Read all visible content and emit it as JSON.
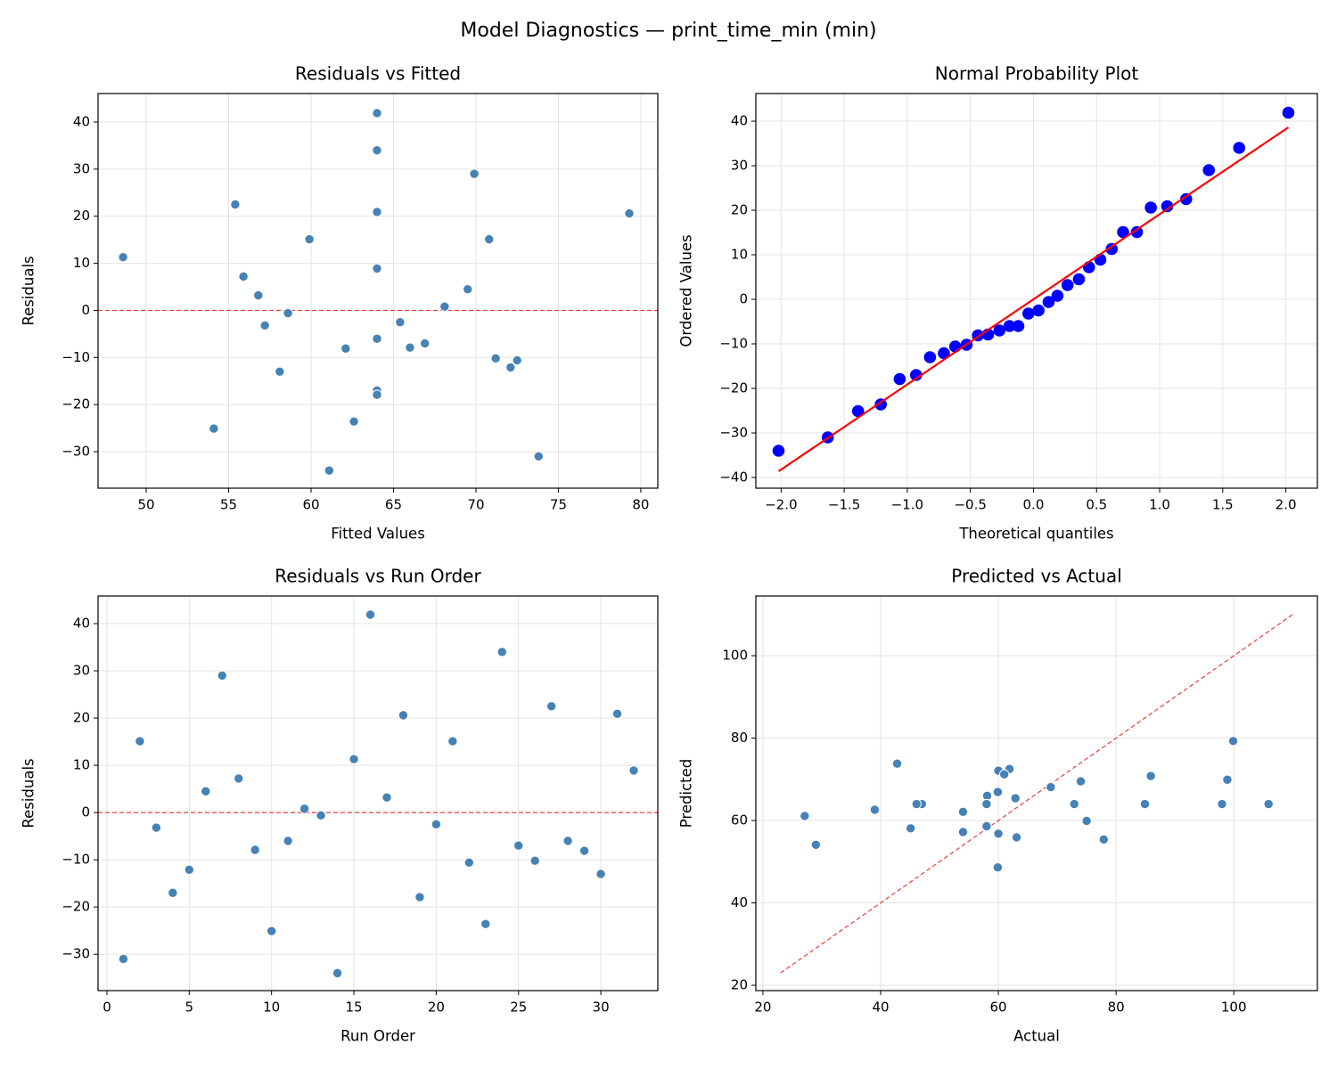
{
  "title": "Model Diagnostics — print_time_min (min)",
  "chart_data": [
    {
      "type": "scatter",
      "title": "Residuals vs Fitted",
      "x_label": "Fitted Values",
      "y_label": "Residuals",
      "color": "#4682b4",
      "grid": true,
      "x": [
        73.8,
        59.9,
        57.2,
        64,
        72.1,
        69.5,
        69.9,
        55.9,
        66,
        54.1,
        64,
        68.1,
        58.6,
        61.1,
        48.6,
        64,
        56.8,
        79.3,
        64,
        65.4,
        70.8,
        72.5,
        62.6,
        64,
        66.9,
        71.2,
        55.4,
        64,
        62.1,
        58.1,
        64,
        64
      ],
      "values": [
        -31,
        15.1,
        -3.2,
        -17,
        -12.1,
        4.5,
        29,
        7.2,
        -7.9,
        -25.1,
        -6,
        0.8,
        -0.6,
        -34,
        11.3,
        41.9,
        3.2,
        20.6,
        -17.9,
        -2.5,
        15.1,
        -10.6,
        -23.6,
        34,
        -7,
        -10.2,
        22.5,
        -6,
        -8.1,
        -13,
        20.9,
        8.9
      ],
      "hline": {
        "value": 0,
        "color": "#e8403a"
      },
      "xlim": [
        47.08,
        81.03
      ],
      "ylim": [
        -37.75,
        46.05
      ],
      "xticks": [
        50,
        55,
        60,
        65,
        70,
        75,
        80
      ],
      "yticks": [
        {
          "value": -30,
          "label": "−30"
        },
        {
          "value": -20,
          "label": "−20"
        },
        {
          "value": -10,
          "label": "−10"
        },
        0,
        10,
        20,
        30,
        40
      ]
    },
    {
      "type": "qq",
      "title": "Normal Probability Plot",
      "x_label": "Theoretical quantiles",
      "y_label": "Ordered Values",
      "color": "#0000ff",
      "grid": true,
      "x": [
        -2.02,
        -1.63,
        -1.39,
        -1.21,
        -1.06,
        -0.93,
        -0.82,
        -0.71,
        -0.62,
        -0.53,
        -0.44,
        -0.36,
        -0.27,
        -0.19,
        -0.12,
        -0.04,
        0.04,
        0.12,
        0.19,
        0.27,
        0.36,
        0.44,
        0.53,
        0.62,
        0.71,
        0.82,
        0.93,
        1.06,
        1.21,
        1.39,
        1.63,
        2.02
      ],
      "values": [
        -34,
        -31,
        -25.1,
        -23.6,
        -17.9,
        -17,
        -13,
        -12.1,
        -10.6,
        -10.2,
        -8.1,
        -7.9,
        -7,
        -6,
        -6,
        -3.2,
        -2.5,
        -0.6,
        0.8,
        3.2,
        4.5,
        7.2,
        8.9,
        11.3,
        15.1,
        15.1,
        20.6,
        20.9,
        22.5,
        29,
        34,
        41.9
      ],
      "line": {
        "x": [
          -2.02,
          2.02
        ],
        "y": [
          -38.6,
          38.6
        ],
        "color": "#ff0000",
        "dashed": false
      },
      "xlim": [
        -2.2,
        2.25
      ],
      "ylim": [
        -42.4,
        46.2
      ],
      "xticks": [
        {
          "value": -2,
          "label": "−2.0"
        },
        {
          "value": -1.5,
          "label": "−1.5"
        },
        {
          "value": -1,
          "label": "−1.0"
        },
        {
          "value": -0.5,
          "label": "−0.5"
        },
        {
          "value": 0,
          "label": "0.0"
        },
        0.5,
        {
          "value": 1,
          "label": "1.0"
        },
        1.5,
        {
          "value": 2,
          "label": "2.0"
        }
      ],
      "yticks": [
        {
          "value": -40,
          "label": "−40"
        },
        {
          "value": -30,
          "label": "−30"
        },
        {
          "value": -20,
          "label": "−20"
        },
        {
          "value": -10,
          "label": "−10"
        },
        0,
        10,
        20,
        30,
        40
      ]
    },
    {
      "type": "scatter",
      "title": "Residuals vs Run Order",
      "x_label": "Run Order",
      "y_label": "Residuals",
      "color": "#4682b4",
      "grid": true,
      "x": [
        1,
        2,
        3,
        4,
        5,
        6,
        7,
        8,
        9,
        10,
        11,
        12,
        13,
        14,
        15,
        16,
        17,
        18,
        19,
        20,
        21,
        22,
        23,
        24,
        25,
        26,
        27,
        28,
        29,
        30,
        31,
        32
      ],
      "values": [
        -31,
        15.1,
        -3.2,
        -17,
        -12.1,
        4.5,
        29,
        7.2,
        -7.9,
        -25.1,
        -6,
        0.8,
        -0.6,
        -34,
        11.3,
        41.9,
        3.2,
        20.6,
        -17.9,
        -2.5,
        15.1,
        -10.6,
        -23.6,
        34,
        -7,
        -10.2,
        22.5,
        -6,
        -8.1,
        -13,
        20.9,
        8.9
      ],
      "hline": {
        "value": 0,
        "color": "#e8403a"
      },
      "xlim": [
        -0.54,
        33.46
      ],
      "ylim": [
        -37.7,
        45.85
      ],
      "xticks": [
        0,
        5,
        10,
        15,
        20,
        25,
        30
      ],
      "yticks": [
        {
          "value": -30,
          "label": "−30"
        },
        {
          "value": -20,
          "label": "−20"
        },
        {
          "value": -10,
          "label": "−10"
        },
        0,
        10,
        20,
        30,
        40
      ]
    },
    {
      "type": "scatter",
      "title": "Predicted vs Actual",
      "x_label": "Actual",
      "y_label": "Predicted",
      "color": "#4682b4",
      "grid": true,
      "x": [
        42.8,
        75,
        54,
        47,
        60,
        74,
        98.9,
        63.1,
        58.1,
        29,
        58,
        68.9,
        58,
        27.1,
        59.9,
        105.9,
        60,
        99.9,
        46.1,
        62.9,
        85.9,
        61.9,
        39,
        98,
        59.9,
        61,
        77.9,
        58,
        54,
        45.1,
        84.9,
        72.9
      ],
      "values": [
        73.8,
        59.9,
        57.2,
        64,
        72.1,
        69.5,
        69.9,
        55.9,
        66,
        54.1,
        64,
        68.1,
        58.6,
        61.1,
        48.6,
        64,
        56.8,
        79.3,
        64,
        65.4,
        70.8,
        72.5,
        62.6,
        64,
        66.9,
        71.2,
        55.4,
        64,
        62.1,
        58.1,
        64,
        64
      ],
      "line": {
        "x": [
          23,
          110
        ],
        "y": [
          23,
          110
        ],
        "color": "#e8403a",
        "dashed": true
      },
      "xlim": [
        18.8,
        114.2
      ],
      "ylim": [
        18.7,
        114.5
      ],
      "xticks": [
        20,
        40,
        60,
        80,
        100
      ],
      "yticks": [
        20,
        40,
        60,
        80,
        100
      ]
    }
  ]
}
